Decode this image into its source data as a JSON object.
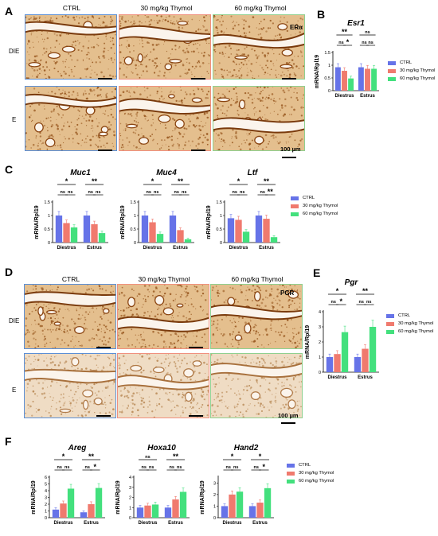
{
  "panels": {
    "A": "A",
    "B": "B",
    "C": "C",
    "D": "D",
    "E": "E",
    "F": "F"
  },
  "groups": [
    "CTRL",
    "30 mg/kg Thymol",
    "60 mg/kg Thymol"
  ],
  "row_labels": {
    "die": "DIE",
    "e": "E"
  },
  "stains": {
    "era": "ERα",
    "pgr": "PGR"
  },
  "scale_label": "100 µm",
  "colors": {
    "ctrl": "#6673e8",
    "t30": "#f07a6e",
    "t60": "#43e07d",
    "frame_ctrl": "#5b8fd6",
    "frame_30": "#f0907e",
    "frame_60": "#8fd08f",
    "stain_dark": "#8a4410",
    "stain_light": "#dcae74"
  },
  "legend": [
    "CTRL",
    "30 mg/kg Thymol",
    "60 mg/kg Thymol"
  ],
  "chart_data": [
    {
      "id": "esr1",
      "type": "bar",
      "title": "Esr1",
      "ylabel": "mRNA/Rpl19",
      "categories": [
        "Diestrus",
        "Estrus"
      ],
      "ylim": [
        0,
        1.5
      ],
      "series": [
        {
          "name": "CTRL",
          "values": [
            0.92,
            0.92
          ]
        },
        {
          "name": "30 mg/kg Thymol",
          "values": [
            0.78,
            0.86
          ]
        },
        {
          "name": "60 mg/kg Thymol",
          "values": [
            0.48,
            0.86
          ]
        }
      ],
      "sig": [
        [
          "**",
          "ns"
        ],
        [
          "ns",
          "*",
          "ns",
          "ns"
        ]
      ]
    },
    {
      "id": "muc1",
      "type": "bar",
      "title": "Muc1",
      "ylabel": "mRNA/Rpl19",
      "categories": [
        "Diestrus",
        "Estrus"
      ],
      "ylim": [
        0,
        1.5
      ],
      "series": [
        {
          "name": "CTRL",
          "values": [
            1.0,
            1.0
          ]
        },
        {
          "name": "30 mg/kg Thymol",
          "values": [
            0.72,
            0.68
          ]
        },
        {
          "name": "60 mg/kg Thymol",
          "values": [
            0.56,
            0.35
          ]
        }
      ],
      "sig": [
        [
          "*",
          "**"
        ],
        [
          "ns",
          "ns",
          "ns",
          "ns"
        ]
      ]
    },
    {
      "id": "muc4",
      "type": "bar",
      "title": "Muc4",
      "ylabel": "mRNA/Rpl19",
      "categories": [
        "Diestrus",
        "Estrus"
      ],
      "ylim": [
        0,
        1.5
      ],
      "series": [
        {
          "name": "CTRL",
          "values": [
            1.0,
            1.0
          ]
        },
        {
          "name": "30 mg/kg Thymol",
          "values": [
            0.75,
            0.46
          ]
        },
        {
          "name": "60 mg/kg Thymol",
          "values": [
            0.32,
            0.12
          ]
        }
      ],
      "sig": [
        [
          "*",
          "**"
        ],
        [
          "ns",
          "ns",
          "ns",
          "ns"
        ]
      ]
    },
    {
      "id": "ltf",
      "type": "bar",
      "title": "Ltf",
      "ylabel": "mRNA/Rpl19",
      "categories": [
        "Diestrus",
        "Estrus"
      ],
      "ylim": [
        0,
        1.5
      ],
      "series": [
        {
          "name": "CTRL",
          "values": [
            0.9,
            1.0
          ]
        },
        {
          "name": "30 mg/kg Thymol",
          "values": [
            0.84,
            0.88
          ]
        },
        {
          "name": "60 mg/kg Thymol",
          "values": [
            0.4,
            0.2
          ]
        }
      ],
      "sig": [
        [
          "*",
          "**"
        ],
        [
          "ns",
          "ns",
          "ns",
          "**"
        ]
      ]
    },
    {
      "id": "pgr",
      "type": "bar",
      "title": "Pgr",
      "ylabel": "mRNA/Rpl19",
      "categories": [
        "Diestrus",
        "Estrus"
      ],
      "ylim": [
        0,
        4
      ],
      "series": [
        {
          "name": "CTRL",
          "values": [
            1.0,
            1.0
          ]
        },
        {
          "name": "30 mg/kg Thymol",
          "values": [
            1.2,
            1.55
          ]
        },
        {
          "name": "60 mg/kg Thymol",
          "values": [
            2.65,
            3.0
          ]
        }
      ],
      "sig": [
        [
          "*",
          "**"
        ],
        [
          "ns",
          "*",
          "ns",
          "ns"
        ]
      ]
    },
    {
      "id": "areg",
      "type": "bar",
      "title": "Areg",
      "ylabel": "mRNA/Rpl19",
      "categories": [
        "Diestrus",
        "Estrus"
      ],
      "ylim": [
        0,
        6
      ],
      "series": [
        {
          "name": "CTRL",
          "values": [
            1.2,
            0.8
          ]
        },
        {
          "name": "30 mg/kg Thymol",
          "values": [
            2.1,
            2.0
          ]
        },
        {
          "name": "60 mg/kg Thymol",
          "values": [
            4.3,
            4.4
          ]
        }
      ],
      "sig": [
        [
          "*",
          "**"
        ],
        [
          "ns",
          "ns",
          "ns",
          "*"
        ]
      ]
    },
    {
      "id": "hoxa10",
      "type": "bar",
      "title": "Hoxa10",
      "ylabel": "mRNA/Rpl19",
      "categories": [
        "Diestrus",
        "Estrus"
      ],
      "ylim": [
        0,
        4
      ],
      "series": [
        {
          "name": "CTRL",
          "values": [
            1.0,
            1.0
          ]
        },
        {
          "name": "30 mg/kg Thymol",
          "values": [
            1.2,
            1.8
          ]
        },
        {
          "name": "60 mg/kg Thymol",
          "values": [
            1.3,
            2.55
          ]
        }
      ],
      "sig": [
        [
          "ns",
          "**"
        ],
        [
          "ns",
          "ns",
          "ns",
          "ns"
        ]
      ]
    },
    {
      "id": "hand2",
      "type": "bar",
      "title": "Hand2",
      "ylabel": "mRNA/Rpl19",
      "categories": [
        "Diestrus",
        "Estrus"
      ],
      "ylim": [
        0,
        3.5
      ],
      "series": [
        {
          "name": "CTRL",
          "values": [
            1.0,
            1.0
          ]
        },
        {
          "name": "30 mg/kg Thymol",
          "values": [
            2.0,
            1.3
          ]
        },
        {
          "name": "60 mg/kg Thymol",
          "values": [
            2.25,
            2.55
          ]
        }
      ],
      "sig": [
        [
          "*",
          "*"
        ],
        [
          "ns",
          "ns",
          "ns",
          "*"
        ]
      ]
    }
  ]
}
